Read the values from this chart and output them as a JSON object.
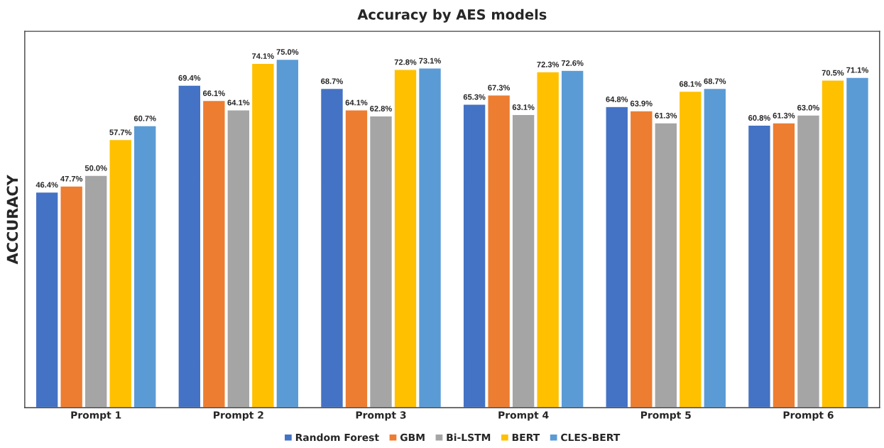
{
  "chart_data": {
    "type": "bar",
    "title": "Accuracy by AES models",
    "ylabel": "ACCURACY",
    "categories": [
      "Prompt 1",
      "Prompt 2",
      "Prompt 3",
      "Prompt 4",
      "Prompt 5",
      "Prompt 6"
    ],
    "series": [
      {
        "name": "Random Forest",
        "color": "#4472c4",
        "values": [
          46.4,
          69.4,
          68.7,
          65.3,
          64.8,
          60.8
        ],
        "value_labels": [
          "46.4%",
          "69.4%",
          "68.7%",
          "65.3%",
          "64.8%",
          "60.8%"
        ]
      },
      {
        "name": "GBM",
        "color": "#ed7d31",
        "values": [
          47.7,
          66.1,
          64.1,
          67.3,
          63.9,
          61.3
        ],
        "value_labels": [
          "47.7%",
          "66.1%",
          "64.1%",
          "67.3%",
          "63.9%",
          "61.3%"
        ]
      },
      {
        "name": "Bi-LSTM",
        "color": "#a5a5a5",
        "values": [
          50.0,
          64.1,
          62.8,
          63.1,
          61.3,
          63.0
        ],
        "value_labels": [
          "50.0%",
          "64.1%",
          "62.8%",
          "63.1%",
          "61.3%",
          "63.0%"
        ]
      },
      {
        "name": "BERT",
        "color": "#ffc000",
        "values": [
          57.7,
          74.1,
          72.8,
          72.3,
          68.1,
          70.5
        ],
        "value_labels": [
          "57.7%",
          "74.1%",
          "72.8%",
          "72.3%",
          "68.1%",
          "70.5%"
        ]
      },
      {
        "name": "CLES-BERT",
        "color": "#5b9bd5",
        "values": [
          60.7,
          75.0,
          73.1,
          72.6,
          68.7,
          71.1
        ],
        "value_labels": [
          "60.7%",
          "75.0%",
          "73.1%",
          "72.6%",
          "68.7%",
          "71.1%"
        ]
      }
    ],
    "ylim": [
      0,
      81
    ],
    "tick_labels": "x",
    "grid": false,
    "legend": "bottom"
  }
}
